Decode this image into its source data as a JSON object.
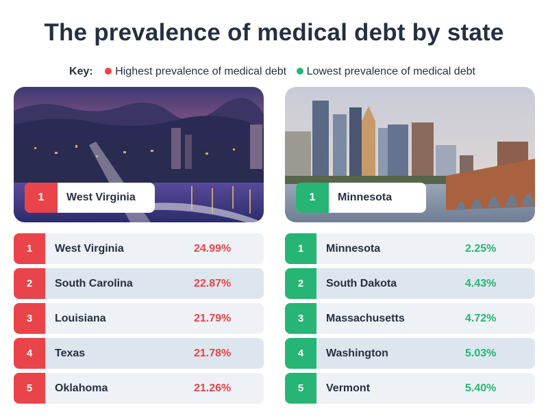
{
  "title": "The prevalence of medical debt by state",
  "key": {
    "label": "Key:",
    "items": [
      {
        "text": "Highest prevalence of medical debt",
        "color": "#e94449"
      },
      {
        "text": "Lowest prevalence of medical debt",
        "color": "#26b574"
      }
    ]
  },
  "colors": {
    "high": "#e94449",
    "low": "#26b574",
    "text": "#243042",
    "row_light": "#eef1f5",
    "row_dark": "#dde6ee"
  },
  "highest": {
    "photo_label": {
      "rank": "1",
      "state": "West Virginia"
    },
    "rows": [
      {
        "rank": "1",
        "state": "West Virginia",
        "value": "24.99%"
      },
      {
        "rank": "2",
        "state": "South Carolina",
        "value": "22.87%"
      },
      {
        "rank": "3",
        "state": "Louisiana",
        "value": "21.79%"
      },
      {
        "rank": "4",
        "state": "Texas",
        "value": "21.78%"
      },
      {
        "rank": "5",
        "state": "Oklahoma",
        "value": "21.26%"
      }
    ]
  },
  "lowest": {
    "photo_label": {
      "rank": "1",
      "state": "Minnesota"
    },
    "rows": [
      {
        "rank": "1",
        "state": "Minnesota",
        "value": "2.25%"
      },
      {
        "rank": "2",
        "state": "South Dakota",
        "value": "4.43%"
      },
      {
        "rank": "3",
        "state": "Massachusetts",
        "value": "4.72%"
      },
      {
        "rank": "4",
        "state": "Washington",
        "value": "5.03%"
      },
      {
        "rank": "5",
        "state": "Vermont",
        "value": "5.40%"
      }
    ]
  },
  "chart_data": {
    "type": "table",
    "title": "The prevalence of medical debt by state",
    "series": [
      {
        "name": "Highest prevalence of medical debt",
        "categories": [
          "West Virginia",
          "South Carolina",
          "Louisiana",
          "Texas",
          "Oklahoma"
        ],
        "values": [
          24.99,
          22.87,
          21.79,
          21.78,
          21.26
        ]
      },
      {
        "name": "Lowest prevalence of medical debt",
        "categories": [
          "Minnesota",
          "South Dakota",
          "Massachusetts",
          "Washington",
          "Vermont"
        ],
        "values": [
          2.25,
          4.43,
          4.72,
          5.03,
          5.4
        ]
      }
    ]
  }
}
